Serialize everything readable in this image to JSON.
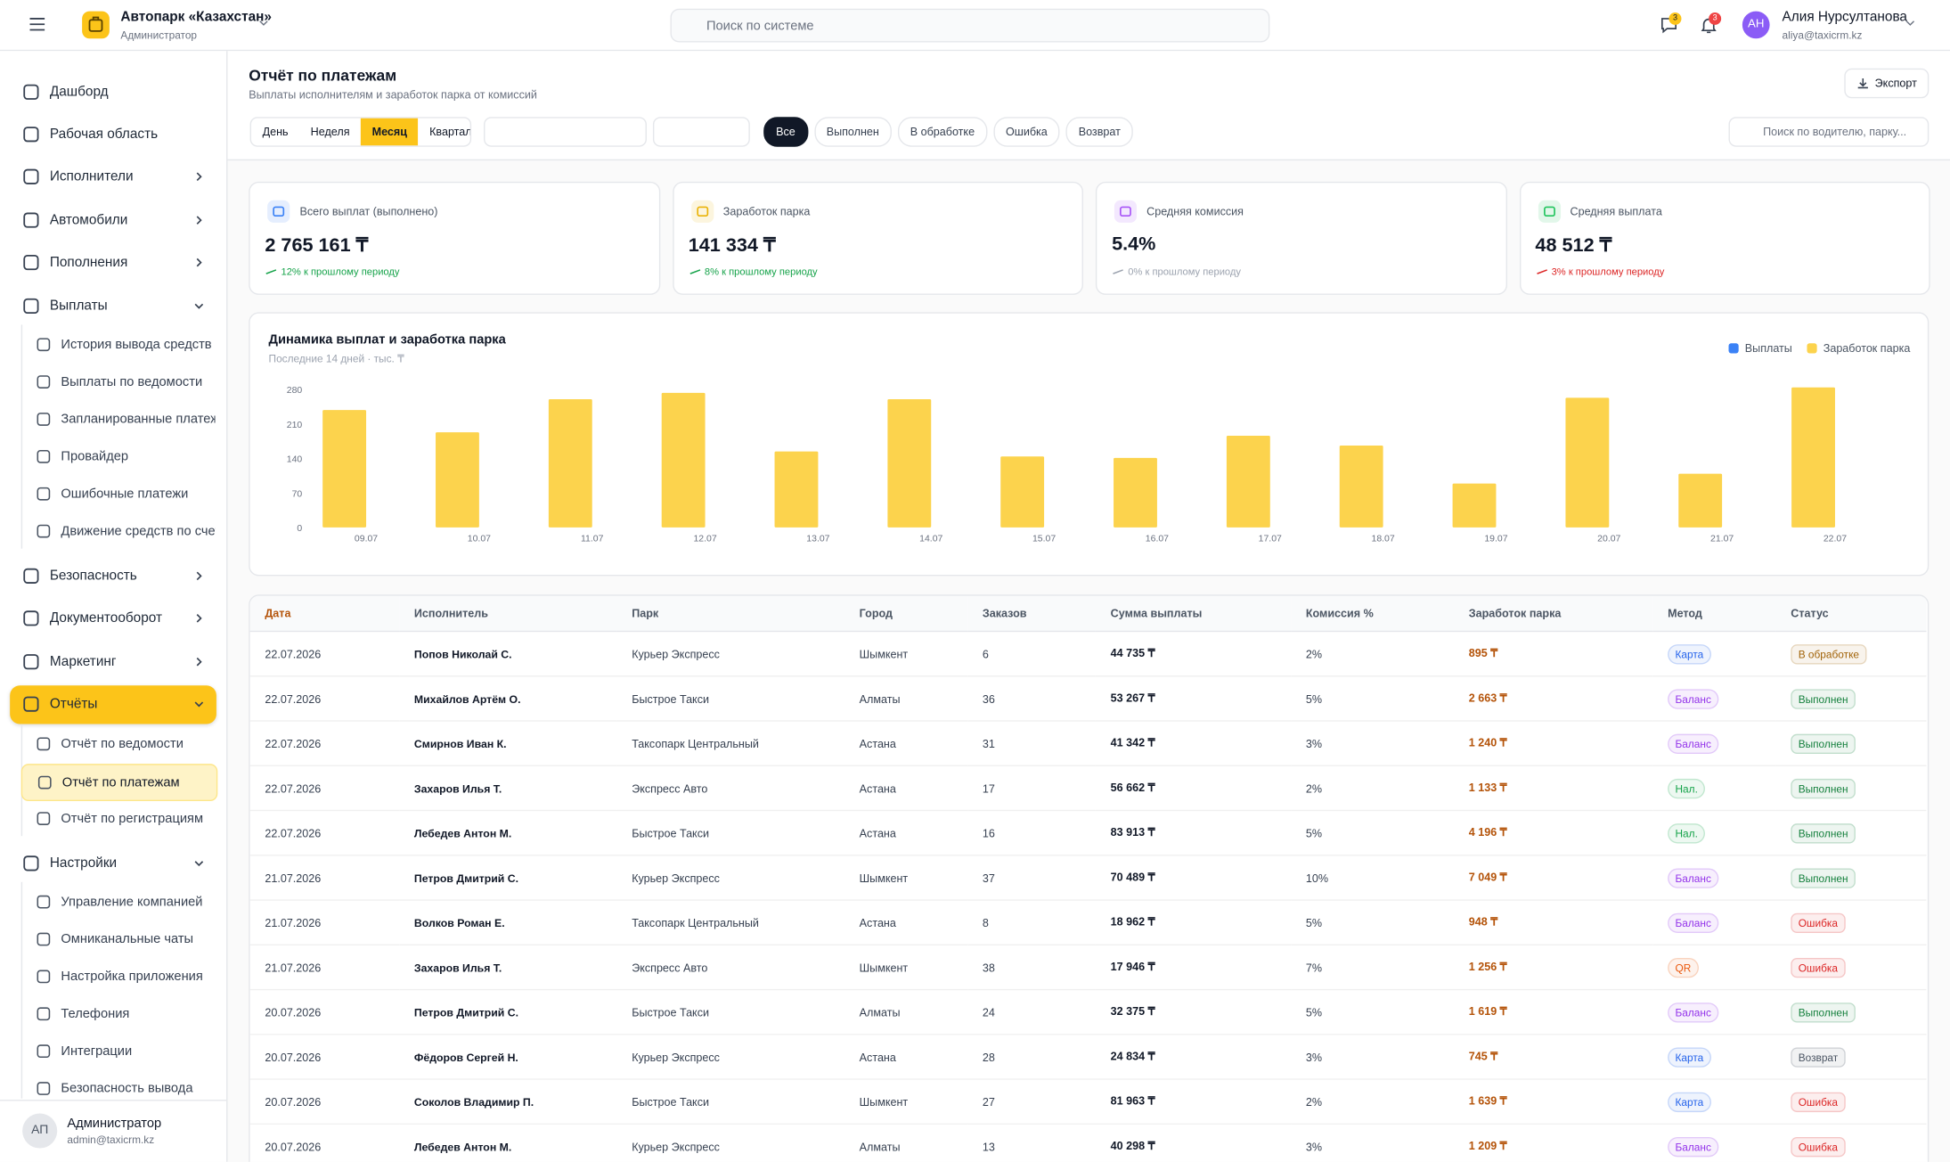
{
  "header": {
    "company": "Автопарк «Казахстан»",
    "role": "Администратор",
    "search_placeholder": "Поиск по системе",
    "chat_badge": 3,
    "bell_badge": 3,
    "avatar": "АН",
    "user_name": "Алия Нурсултанова",
    "user_email": "aliya@taxicrm.kz"
  },
  "sidebar": {
    "items": [
      {
        "label": "Дашборд"
      },
      {
        "label": "Рабочая область"
      },
      {
        "label": "Исполнители",
        "chevron": "right"
      },
      {
        "label": "Автомобили",
        "chevron": "right"
      },
      {
        "label": "Пополнения",
        "chevron": "right"
      },
      {
        "label": "Выплаты",
        "chevron": "down",
        "children": [
          {
            "label": "История вывода средств"
          },
          {
            "label": "Выплаты по ведомости"
          },
          {
            "label": "Запланированные платежи"
          },
          {
            "label": "Провайдер"
          },
          {
            "label": "Ошибочные платежи"
          },
          {
            "label": "Движение средств по счетам"
          }
        ]
      },
      {
        "label": "Безопасность",
        "chevron": "right"
      },
      {
        "label": "Документооборот",
        "chevron": "right"
      },
      {
        "label": "Маркетинг",
        "chevron": "right"
      },
      {
        "label": "Отчёты",
        "chevron": "down",
        "active": true,
        "children": [
          {
            "label": "Отчёт по ведомости"
          },
          {
            "label": "Отчёт по платежам",
            "active": true
          },
          {
            "label": "Отчёт по регистрациям"
          }
        ]
      },
      {
        "label": "Настройки",
        "chevron": "down",
        "children": [
          {
            "label": "Управление компанией"
          },
          {
            "label": "Омниканальные чаты"
          },
          {
            "label": "Настройка приложения"
          },
          {
            "label": "Телефония"
          },
          {
            "label": "Интеграции"
          },
          {
            "label": "Безопасность вывода"
          }
        ]
      }
    ],
    "footer": {
      "avatar": "АП",
      "name": "Администратор",
      "email": "admin@taxicrm.kz"
    }
  },
  "page": {
    "title": "Отчёт по платежам",
    "subtitle": "Выплаты исполнителям и заработок парка от комиссий",
    "export": "Экспорт",
    "periods": [
      "День",
      "Неделя",
      "Месяц",
      "Квартал"
    ],
    "active_period": 2,
    "statuses": [
      "Все",
      "Выполнен",
      "В обработке",
      "Ошибка",
      "Возврат"
    ],
    "active_status": 0,
    "search_placeholder": "Поиск по водителю, парку..."
  },
  "kpis": [
    {
      "label": "Всего выплат (выполнено)",
      "value": "2 765 161 ₸",
      "change": "12% к прошлому периоду",
      "icon_color": "#3b82f6",
      "change_color": "#16a34a"
    },
    {
      "label": "Заработок парка",
      "value": "141 334 ₸",
      "change": "8% к прошлому периоду",
      "icon_color": "#eab308",
      "change_color": "#16a34a"
    },
    {
      "label": "Средняя комиссия",
      "value": "5.4%",
      "change": "0% к прошлому периоду",
      "icon_color": "#a855f7",
      "change_color": "#9ca3af"
    },
    {
      "label": "Средняя выплата",
      "value": "48 512 ₸",
      "change": "3% к прошлому периоду",
      "icon_color": "#22c55e",
      "change_color": "#dc2626"
    }
  ],
  "chart_data": {
    "type": "bar",
    "title": "Динамика выплат и заработка парка",
    "subtitle": "Последние 14 дней · тыс. ₸",
    "categories": [
      "09.07",
      "10.07",
      "11.07",
      "12.07",
      "13.07",
      "14.07",
      "15.07",
      "16.07",
      "17.07",
      "18.07",
      "19.07",
      "20.07",
      "21.07",
      "22.07"
    ],
    "series": [
      {
        "name": "Выплаты",
        "color": "#3b82f6",
        "values": [
          null,
          null,
          null,
          null,
          null,
          null,
          null,
          null,
          null,
          null,
          null,
          null,
          null,
          null
        ]
      },
      {
        "name": "Заработок парка",
        "color": "#fcd34d",
        "values": [
          238,
          193,
          260,
          273,
          154,
          260,
          144,
          141,
          186,
          166,
          89,
          263,
          109,
          284
        ]
      }
    ],
    "ylim": [
      0,
      285
    ],
    "yticks": [
      0,
      70,
      140,
      210,
      280
    ],
    "legend": "top-right"
  },
  "table": {
    "columns": [
      "Дата",
      "Исполнитель",
      "Парк",
      "Город",
      "Заказов",
      "Сумма выплаты",
      "Комиссия %",
      "Заработок парка",
      "Метод",
      "Статус"
    ],
    "rows": [
      [
        "22.07.2026",
        "Попов Николай С.",
        "Курьер Экспресс",
        "Шымкент",
        "6",
        "44 735 ₸",
        "2%",
        "895 ₸",
        "Карта",
        "В обработке"
      ],
      [
        "22.07.2026",
        "Михайлов Артём О.",
        "Быстрое Такси",
        "Алматы",
        "36",
        "53 267 ₸",
        "5%",
        "2 663 ₸",
        "Баланс",
        "Выполнен"
      ],
      [
        "22.07.2026",
        "Смирнов Иван К.",
        "Таксопарк Центральный",
        "Астана",
        "31",
        "41 342 ₸",
        "3%",
        "1 240 ₸",
        "Баланс",
        "Выполнен"
      ],
      [
        "22.07.2026",
        "Захаров Илья Т.",
        "Экспресс Авто",
        "Астана",
        "17",
        "56 662 ₸",
        "2%",
        "1 133 ₸",
        "Нал.",
        "Выполнен"
      ],
      [
        "22.07.2026",
        "Лебедев Антон М.",
        "Быстрое Такси",
        "Астана",
        "16",
        "83 913 ₸",
        "5%",
        "4 196 ₸",
        "Нал.",
        "Выполнен"
      ],
      [
        "21.07.2026",
        "Петров Дмитрий С.",
        "Курьер Экспресс",
        "Шымкент",
        "37",
        "70 489 ₸",
        "10%",
        "7 049 ₸",
        "Баланс",
        "Выполнен"
      ],
      [
        "21.07.2026",
        "Волков Роман Е.",
        "Таксопарк Центральный",
        "Астана",
        "8",
        "18 962 ₸",
        "5%",
        "948 ₸",
        "Баланс",
        "Ошибка"
      ],
      [
        "21.07.2026",
        "Захаров Илья Т.",
        "Экспресс Авто",
        "Шымкент",
        "38",
        "17 946 ₸",
        "7%",
        "1 256 ₸",
        "QR",
        "Ошибка"
      ],
      [
        "20.07.2026",
        "Петров Дмитрий С.",
        "Быстрое Такси",
        "Алматы",
        "24",
        "32 375 ₸",
        "5%",
        "1 619 ₸",
        "Баланс",
        "Выполнен"
      ],
      [
        "20.07.2026",
        "Фёдоров Сергей Н.",
        "Курьер Экспресс",
        "Астана",
        "28",
        "24 834 ₸",
        "3%",
        "745 ₸",
        "Карта",
        "Возврат"
      ],
      [
        "20.07.2026",
        "Соколов Владимир П.",
        "Быстрое Такси",
        "Шымкент",
        "27",
        "81 963 ₸",
        "2%",
        "1 639 ₸",
        "Карта",
        "Ошибка"
      ],
      [
        "20.07.2026",
        "Лебедев Антон М.",
        "Курьер Экспресс",
        "Алматы",
        "13",
        "40 298 ₸",
        "3%",
        "1 209 ₸",
        "Баланс",
        "Ошибка"
      ]
    ],
    "badge_colors": {
      "Карта": "#2563eb",
      "Баланс": "#9333ea",
      "Нал.": "#16a34a",
      "QR": "#ea580c",
      "В обработке": "#a16207",
      "Выполнен": "#15803d",
      "Ошибка": "#dc2626",
      "Возврат": "#4b5563"
    },
    "earnings_color": "#b45309"
  }
}
